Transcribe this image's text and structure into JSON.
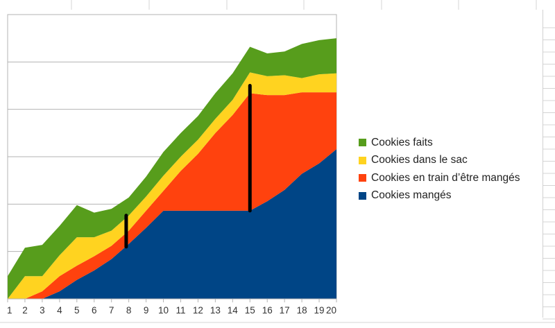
{
  "chart_data": {
    "type": "area",
    "stacked": true,
    "x": [
      1,
      2,
      3,
      4,
      5,
      6,
      7,
      8,
      9,
      10,
      11,
      12,
      13,
      14,
      15,
      16,
      17,
      18,
      19,
      20
    ],
    "xlabel": "",
    "ylabel": "",
    "ylim": [
      0,
      30
    ],
    "y_tick_step": 5,
    "y_tick_labels_shown": false,
    "grid": true,
    "legend_position": "right",
    "series": [
      {
        "name": "Cookies mangés",
        "color": "#004586",
        "values": [
          0,
          0,
          0,
          0.8,
          2.0,
          3.0,
          4.2,
          5.8,
          7.5,
          9.3,
          9.3,
          9.3,
          9.3,
          9.3,
          9.3,
          10.3,
          11.5,
          13.2,
          14.3,
          15.8
        ]
      },
      {
        "name": "Cookies en train d’être mangés",
        "color": "#ff420e",
        "values": [
          0,
          0,
          0.8,
          1.6,
          1.5,
          1.5,
          1.4,
          1.4,
          1.8,
          2.1,
          4.2,
          6.0,
          8.2,
          10.1,
          12.4,
          11.2,
          10.0,
          8.6,
          7.5,
          6.0
        ]
      },
      {
        "name": "Cookies dans le sac",
        "color": "#ffd320",
        "values": [
          0,
          2.4,
          1.6,
          2.2,
          3.0,
          2.0,
          1.6,
          1.6,
          1.5,
          1.6,
          1.5,
          1.5,
          1.5,
          1.6,
          2.2,
          2.0,
          2.1,
          1.5,
          1.9,
          2.0
        ]
      },
      {
        "name": "Cookies faits",
        "color": "#579d1c",
        "values": [
          2.4,
          3.0,
          3.3,
          3.1,
          3.4,
          2.6,
          2.3,
          1.9,
          2.1,
          2.5,
          2.5,
          2.5,
          2.7,
          2.8,
          2.7,
          2.4,
          2.5,
          3.6,
          3.6,
          3.7
        ]
      }
    ],
    "annotations": [
      {
        "type": "vertical-bar",
        "x": 7.85,
        "y_from": 5.5,
        "y_to": 8.8,
        "color": "#000000"
      },
      {
        "type": "vertical-bar",
        "x": 15,
        "y_from": 9.3,
        "y_to": 22.5,
        "color": "#000000"
      }
    ]
  },
  "legend": {
    "items": [
      "Cookies faits",
      "Cookies dans le sac",
      "Cookies en train d’être mangés",
      "Cookies mangés"
    ],
    "colors": [
      "#579d1c",
      "#ffd320",
      "#ff420e",
      "#004586"
    ]
  }
}
